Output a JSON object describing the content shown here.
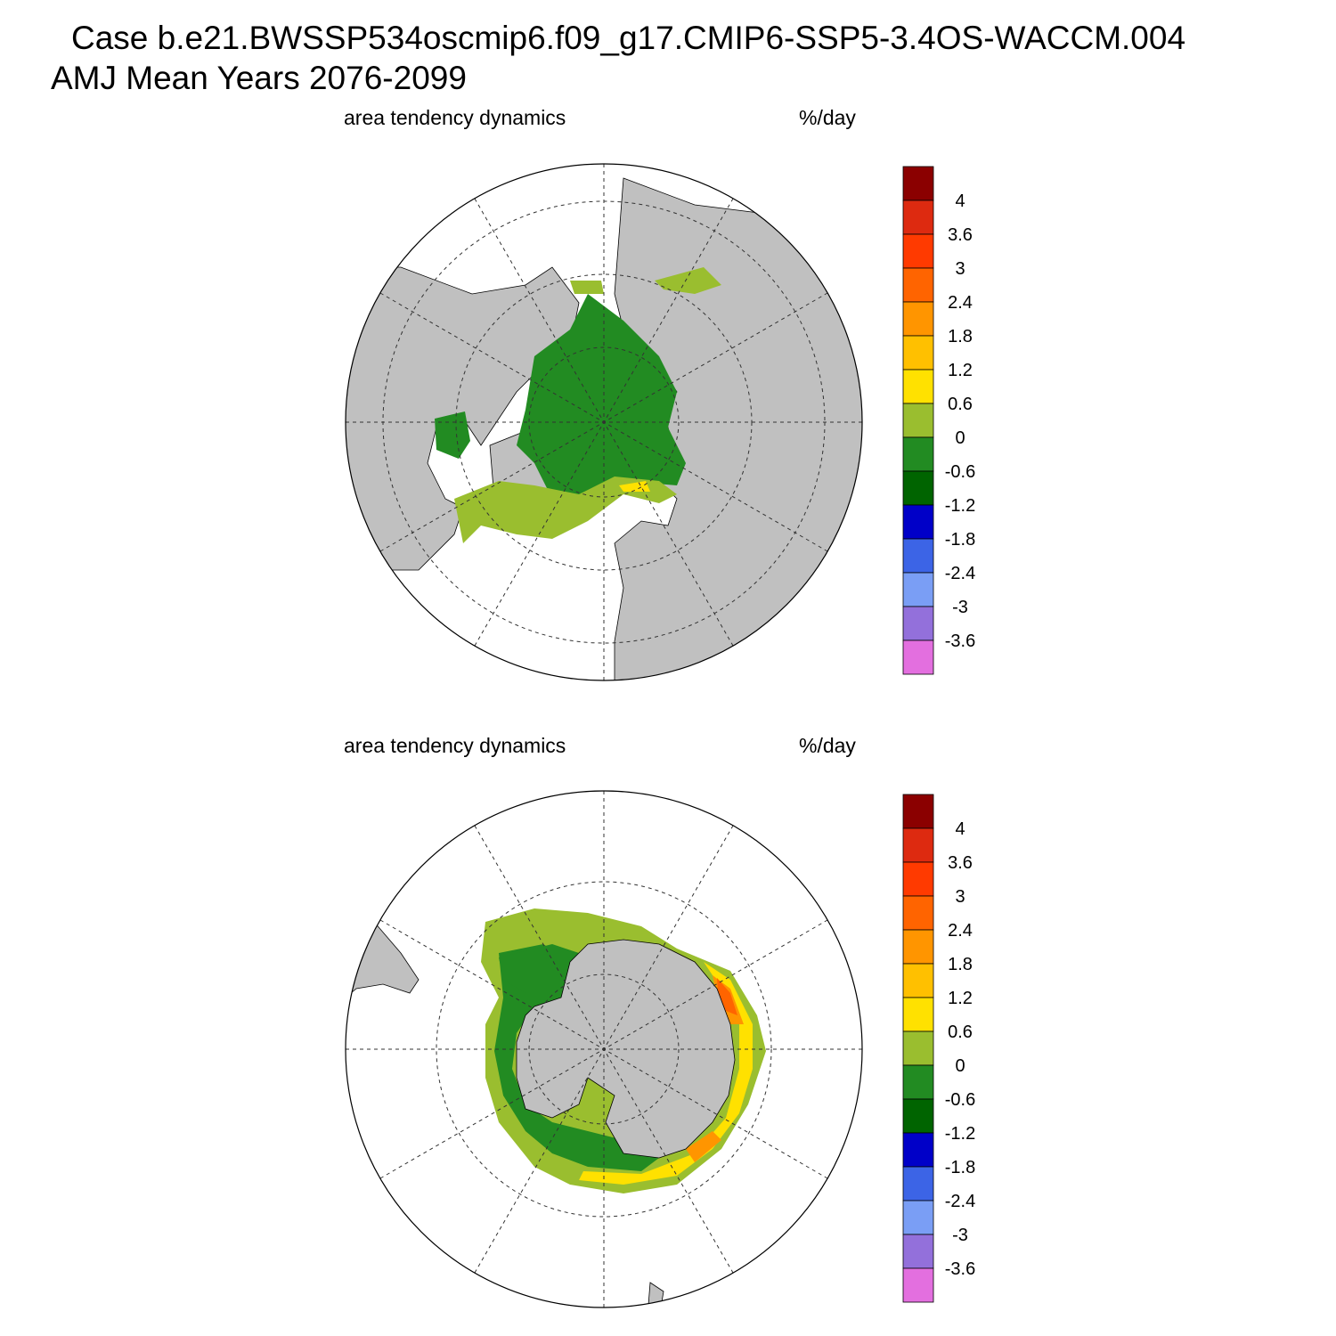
{
  "title": {
    "line1": "Case b.e21.BWSSP534oscmip6.f09_g17.CMIP6-SSP5-3.4OS-WACCM.004",
    "line2": "AMJ Mean   Years 2076-2099"
  },
  "panels": [
    {
      "id": "north",
      "hemisphere": "Northern",
      "left_label": "area tendency dynamics",
      "right_label": "%/day"
    },
    {
      "id": "south",
      "hemisphere": "Southern",
      "left_label": "area tendency dynamics",
      "right_label": "%/day"
    }
  ],
  "colorbar": {
    "labels": [
      "4",
      "3.6",
      "3",
      "2.4",
      "1.8",
      "1.2",
      "0.6",
      "0",
      "-0.6",
      "-1.2",
      "-1.8",
      "-2.4",
      "-3",
      "-3.6"
    ],
    "colors": [
      "#8b0000",
      "#dd2a10",
      "#ff3a00",
      "#ff6400",
      "#ff9500",
      "#ffc000",
      "#ffe100",
      "#9abe2f",
      "#228b22",
      "#006400",
      "#0000c8",
      "#3c64e6",
      "#7a9ef5",
      "#9370db",
      "#e36fdf"
    ]
  },
  "colors": {
    "land": "#c0c0c0",
    "ice_green": "#228b22",
    "ice_light": "#9abe2f",
    "ice_yellow": "#ffe100",
    "ice_orange": "#ff9500",
    "ice_red": "#ff6400"
  }
}
